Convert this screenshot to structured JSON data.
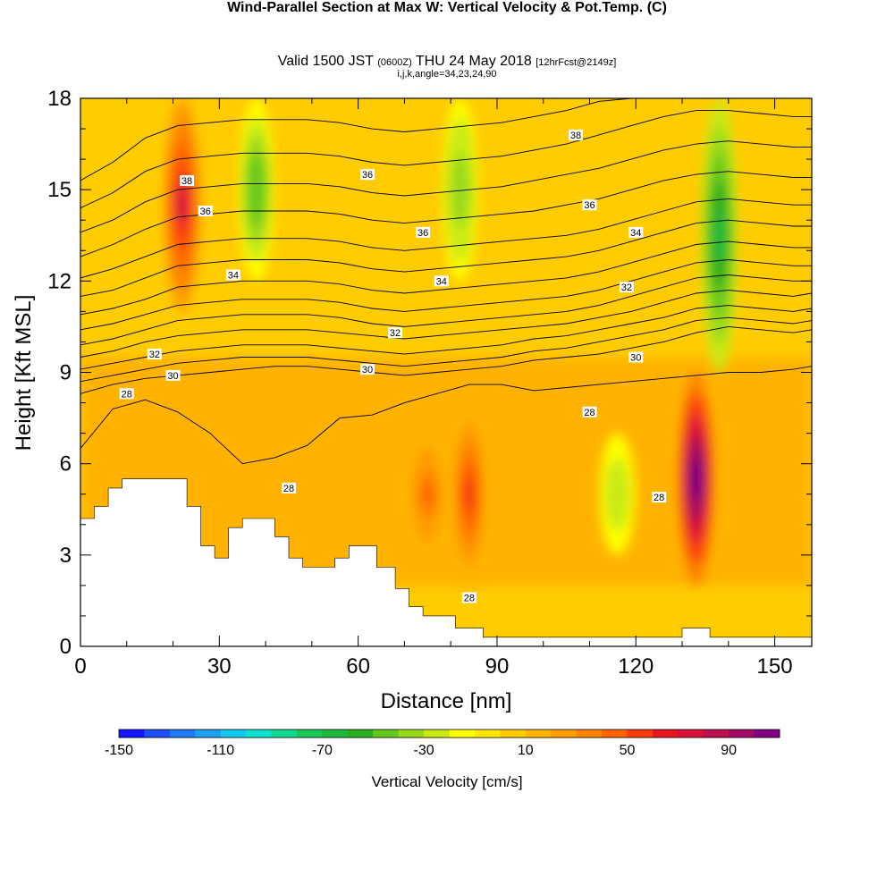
{
  "header": {
    "title": "Wind-Parallel Section at Max W: Vertical Velocity & Pot.Temp.",
    "copyright": "(C)",
    "valid_prefix": "Valid 1500 JST",
    "valid_utc": "(0600Z)",
    "valid_date": "THU 24 May 2018",
    "forecast": "[12hrFcst@2149z]",
    "indices": "i,j,k,angle=34,23,24,90"
  },
  "chart_data": {
    "type": "heatmap",
    "xlabel": "Distance [nm]",
    "ylabel": "Height [Kft MSL]",
    "xlim": [
      0,
      158
    ],
    "ylim": [
      0,
      18
    ],
    "x_ticks": [
      0,
      30,
      60,
      90,
      120,
      150
    ],
    "y_ticks": [
      0,
      3,
      6,
      9,
      12,
      15,
      18
    ],
    "colorbar": {
      "label": "Vertical Velocity [cm/s]",
      "ticks": [
        -150,
        -110,
        -70,
        -30,
        10,
        50,
        90
      ],
      "min": -150,
      "max": 110,
      "step": 10,
      "colors": [
        "#1414ff",
        "#1c50f6",
        "#1e78f0",
        "#1ea0ee",
        "#12c8ee",
        "#10e0d0",
        "#12d890",
        "#1ac85a",
        "#1eb83c",
        "#2aad1e",
        "#66c81a",
        "#9ad81c",
        "#c8ea12",
        "#ffff00",
        "#ffe600",
        "#ffcc00",
        "#ffb400",
        "#ff9c00",
        "#ff8200",
        "#ff6400",
        "#f83c10",
        "#e8141e",
        "#d8103a",
        "#bc1050",
        "#a00a64",
        "#800080"
      ]
    },
    "updraft_cores": [
      {
        "x": 22,
        "z_bottom": 11,
        "z_top": 18,
        "peak": 70
      },
      {
        "x": 75,
        "z_bottom": 3,
        "z_top": 7,
        "peak": 40
      },
      {
        "x": 84,
        "z_bottom": 2,
        "z_top": 8,
        "peak": 50
      },
      {
        "x": 133,
        "z_bottom": 2,
        "z_top": 9,
        "peak": 110
      }
    ],
    "downdraft_cores": [
      {
        "x": 38,
        "z_bottom": 12,
        "z_top": 18,
        "peak": -50
      },
      {
        "x": 82,
        "z_bottom": 12,
        "z_top": 18,
        "peak": -40
      },
      {
        "x": 138,
        "z_bottom": 9,
        "z_top": 18,
        "peak": -70
      },
      {
        "x": 116,
        "z_bottom": 3,
        "z_top": 7,
        "peak": -30
      }
    ],
    "isentrope_labels": [
      {
        "text": "28",
        "x": 10,
        "z": 8.3
      },
      {
        "text": "30",
        "x": 20,
        "z": 8.9
      },
      {
        "text": "32",
        "x": 16,
        "z": 9.6
      },
      {
        "text": "34",
        "x": 33,
        "z": 12.2
      },
      {
        "text": "36",
        "x": 27,
        "z": 14.3
      },
      {
        "text": "38",
        "x": 23,
        "z": 15.3
      },
      {
        "text": "36",
        "x": 62,
        "z": 15.5
      },
      {
        "text": "36",
        "x": 74,
        "z": 13.6
      },
      {
        "text": "34",
        "x": 78,
        "z": 12.0
      },
      {
        "text": "32",
        "x": 68,
        "z": 10.3
      },
      {
        "text": "30",
        "x": 62,
        "z": 9.1
      },
      {
        "text": "38",
        "x": 107,
        "z": 16.8
      },
      {
        "text": "36",
        "x": 110,
        "z": 14.5
      },
      {
        "text": "34",
        "x": 120,
        "z": 13.6
      },
      {
        "text": "32",
        "x": 118,
        "z": 11.8
      },
      {
        "text": "30",
        "x": 120,
        "z": 9.5
      },
      {
        "text": "28",
        "x": 110,
        "z": 7.7
      },
      {
        "text": "28",
        "x": 45,
        "z": 5.2
      },
      {
        "text": "28",
        "x": 84,
        "z": 1.6
      },
      {
        "text": "28",
        "x": 125,
        "z": 4.9
      }
    ],
    "terrain": [
      [
        0,
        4.2
      ],
      [
        3,
        4.2
      ],
      [
        3,
        4.6
      ],
      [
        6,
        4.6
      ],
      [
        6,
        5.2
      ],
      [
        9,
        5.2
      ],
      [
        9,
        5.5
      ],
      [
        23,
        5.5
      ],
      [
        23,
        4.6
      ],
      [
        26,
        4.6
      ],
      [
        26,
        3.3
      ],
      [
        29,
        3.3
      ],
      [
        29,
        2.9
      ],
      [
        32,
        2.9
      ],
      [
        32,
        3.9
      ],
      [
        35,
        3.9
      ],
      [
        35,
        4.2
      ],
      [
        42,
        4.2
      ],
      [
        42,
        3.6
      ],
      [
        45,
        3.6
      ],
      [
        45,
        2.9
      ],
      [
        48,
        2.9
      ],
      [
        48,
        2.6
      ],
      [
        55,
        2.6
      ],
      [
        55,
        2.9
      ],
      [
        58,
        2.9
      ],
      [
        58,
        3.3
      ],
      [
        64,
        3.3
      ],
      [
        64,
        2.6
      ],
      [
        68,
        2.6
      ],
      [
        68,
        1.9
      ],
      [
        71,
        1.9
      ],
      [
        71,
        1.3
      ],
      [
        74,
        1.3
      ],
      [
        74,
        1.0
      ],
      [
        81,
        1.0
      ],
      [
        81,
        0.6
      ],
      [
        87,
        0.6
      ],
      [
        87,
        0.3
      ],
      [
        130,
        0.3
      ],
      [
        130,
        0.6
      ],
      [
        136,
        0.6
      ],
      [
        136,
        0.3
      ],
      [
        158,
        0.3
      ]
    ],
    "isentropes": [
      {
        "value": 28,
        "z": [
          6.5,
          7.8,
          8.1,
          7.7,
          7.0,
          6.0,
          6.2,
          6.6,
          7.5,
          7.6,
          8.0,
          8.3,
          8.6,
          8.6,
          8.4,
          8.5,
          8.6,
          8.7,
          8.8,
          8.9,
          9.0,
          9.0,
          9.1,
          9.2
        ]
      },
      {
        "value": 30,
        "z": [
          8.3,
          8.6,
          8.8,
          8.9,
          9.0,
          9.1,
          9.2,
          9.2,
          9.1,
          9.0,
          8.9,
          9.0,
          9.1,
          9.2,
          9.4,
          9.5,
          9.6,
          9.8,
          10.0,
          10.3,
          10.5,
          10.4,
          10.3,
          10.4
        ]
      },
      {
        "value": 30,
        "z": [
          8.7,
          8.9,
          9.1,
          9.3,
          9.4,
          9.5,
          9.5,
          9.5,
          9.4,
          9.3,
          9.2,
          9.3,
          9.4,
          9.5,
          9.7,
          9.8,
          10.0,
          10.2,
          10.4,
          10.7,
          10.8,
          10.7,
          10.6,
          10.7
        ]
      },
      {
        "value": 32,
        "z": [
          9.1,
          9.3,
          9.5,
          9.7,
          9.8,
          9.9,
          9.9,
          9.9,
          9.8,
          9.7,
          9.6,
          9.7,
          9.8,
          9.9,
          10.1,
          10.2,
          10.4,
          10.6,
          10.8,
          11.1,
          11.2,
          11.1,
          11.0,
          11.1
        ]
      },
      {
        "value": 32,
        "z": [
          9.5,
          9.7,
          10.0,
          10.2,
          10.3,
          10.4,
          10.4,
          10.4,
          10.3,
          10.2,
          10.1,
          10.2,
          10.3,
          10.4,
          10.5,
          10.6,
          10.8,
          11.0,
          11.3,
          11.6,
          11.7,
          11.6,
          11.5,
          11.6
        ]
      },
      {
        "value": 32,
        "z": [
          9.9,
          10.1,
          10.4,
          10.7,
          10.8,
          10.9,
          10.9,
          10.9,
          10.8,
          10.6,
          10.5,
          10.6,
          10.7,
          10.8,
          10.9,
          11.0,
          11.2,
          11.5,
          11.8,
          12.1,
          12.2,
          12.1,
          12.0,
          12.0
        ]
      },
      {
        "value": 34,
        "z": [
          10.4,
          10.6,
          10.9,
          11.2,
          11.3,
          11.4,
          11.4,
          11.4,
          11.3,
          11.1,
          11.0,
          11.1,
          11.2,
          11.3,
          11.4,
          11.5,
          11.7,
          12.0,
          12.3,
          12.6,
          12.7,
          12.6,
          12.5,
          12.5
        ]
      },
      {
        "value": 34,
        "z": [
          10.9,
          11.1,
          11.4,
          11.8,
          11.9,
          12.0,
          12.0,
          12.0,
          11.9,
          11.7,
          11.6,
          11.7,
          11.8,
          11.9,
          12.0,
          12.1,
          12.3,
          12.6,
          12.9,
          13.2,
          13.3,
          13.2,
          13.1,
          13.1
        ]
      },
      {
        "value": 34,
        "z": [
          11.5,
          11.7,
          12.1,
          12.5,
          12.6,
          12.7,
          12.7,
          12.7,
          12.6,
          12.4,
          12.3,
          12.4,
          12.5,
          12.6,
          12.7,
          12.8,
          13.0,
          13.3,
          13.6,
          13.9,
          14.0,
          13.9,
          13.8,
          13.8
        ]
      },
      {
        "value": 36,
        "z": [
          12.1,
          12.4,
          12.8,
          13.2,
          13.3,
          13.4,
          13.4,
          13.4,
          13.3,
          13.1,
          13.0,
          13.1,
          13.2,
          13.3,
          13.4,
          13.5,
          13.7,
          14.0,
          14.3,
          14.6,
          14.7,
          14.6,
          14.5,
          14.5
        ]
      },
      {
        "value": 36,
        "z": [
          12.8,
          13.2,
          13.7,
          14.1,
          14.2,
          14.3,
          14.3,
          14.3,
          14.2,
          14.0,
          13.9,
          14.0,
          14.1,
          14.2,
          14.3,
          14.5,
          14.7,
          15.0,
          15.3,
          15.5,
          15.6,
          15.5,
          15.4,
          15.4
        ]
      },
      {
        "value": 36,
        "z": [
          13.6,
          14.0,
          14.6,
          15.0,
          15.1,
          15.2,
          15.2,
          15.2,
          15.1,
          14.9,
          14.8,
          14.9,
          15.0,
          15.1,
          15.3,
          15.5,
          15.7,
          16.0,
          16.3,
          16.5,
          16.6,
          16.5,
          16.4,
          16.4
        ]
      },
      {
        "value": 38,
        "z": [
          14.4,
          14.9,
          15.6,
          16.0,
          16.1,
          16.2,
          16.2,
          16.2,
          16.1,
          15.9,
          15.8,
          15.9,
          16.0,
          16.1,
          16.3,
          16.5,
          16.8,
          17.1,
          17.4,
          17.6,
          17.6,
          17.5,
          17.4,
          17.4
        ]
      },
      {
        "value": 38,
        "z": [
          15.3,
          15.9,
          16.7,
          17.1,
          17.2,
          17.3,
          17.3,
          17.3,
          17.2,
          17.0,
          16.9,
          17.0,
          17.1,
          17.2,
          17.4,
          17.6,
          17.9,
          18.0,
          18.0,
          18.0,
          18.0,
          18.0,
          18.0,
          18.0
        ]
      }
    ],
    "isentrope_x": [
      0,
      7,
      14,
      21,
      28,
      35,
      42,
      49,
      56,
      63,
      70,
      77,
      84,
      91,
      98,
      105,
      112,
      119,
      126,
      133,
      140,
      147,
      154,
      158
    ]
  }
}
